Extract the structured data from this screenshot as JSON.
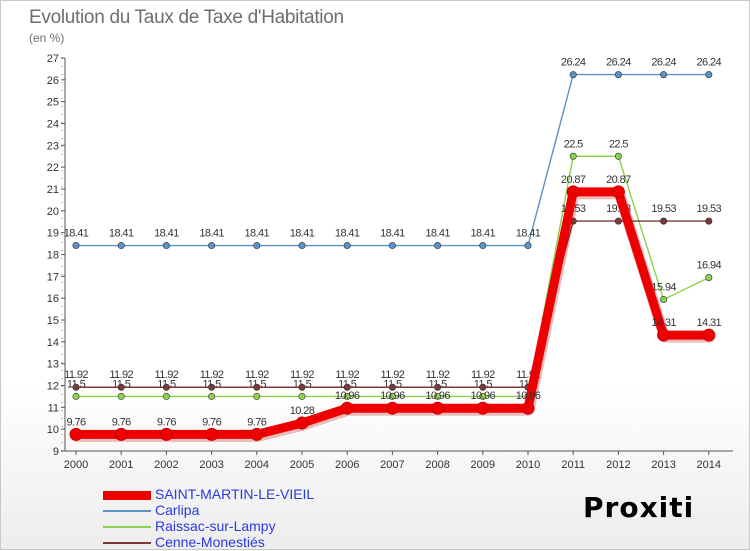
{
  "header": {
    "title": "Evolution du Taux de Taxe d'Habitation",
    "unit_label": "(en %)"
  },
  "branding": {
    "logo_text": "Proxiti"
  },
  "chart_data": {
    "type": "line",
    "title": "Evolution du Taux de Taxe d'Habitation",
    "ylabel": "(en %)",
    "xlabel": "",
    "ylim": [
      9,
      27
    ],
    "yticks": [
      9,
      10,
      11,
      12,
      13,
      14,
      15,
      16,
      17,
      18,
      19,
      20,
      21,
      22,
      23,
      24,
      25,
      26,
      27
    ],
    "grid": false,
    "legend_position": "bottom-left",
    "x": [
      "2000",
      "2001",
      "2002",
      "2003",
      "2004",
      "2005",
      "2006",
      "2007",
      "2008",
      "2009",
      "2010",
      "2011",
      "2012",
      "2013",
      "2014"
    ],
    "series": [
      {
        "name": "Carlipa",
        "color": "#5b93c7",
        "values": [
          18.41,
          18.41,
          18.41,
          18.41,
          18.41,
          18.41,
          18.41,
          18.41,
          18.41,
          18.41,
          18.41,
          26.24,
          26.24,
          26.24,
          26.24
        ],
        "labels": [
          "18.41",
          "18.41",
          "18.41",
          "18.41",
          "18.41",
          "18.41",
          "18.41",
          "18.41",
          "18.41",
          "18.41",
          "18.41",
          "26.24",
          "26.24",
          "26.24",
          "26.24"
        ]
      },
      {
        "name": "Raissac-sur-Lampy",
        "color": "#8ed14c",
        "values": [
          11.5,
          11.5,
          11.5,
          11.5,
          11.5,
          11.5,
          11.5,
          11.5,
          11.5,
          11.5,
          11.5,
          22.5,
          22.5,
          15.94,
          16.94
        ],
        "labels": [
          "11.5",
          "11.5",
          "11.5",
          "11.5",
          "11.5",
          "11.5",
          "11.5",
          "11.5",
          "11.5",
          "11.5",
          "11.5",
          "22.5",
          "22.5",
          "15.94",
          "16.94"
        ]
      },
      {
        "name": "Cenne-Monestiés",
        "color": "#7a3a3a",
        "values": [
          11.92,
          11.92,
          11.92,
          11.92,
          11.92,
          11.92,
          11.92,
          11.92,
          11.92,
          11.92,
          11.92,
          19.53,
          19.53,
          19.53,
          19.53
        ],
        "labels": [
          "11.92",
          "11.92",
          "11.92",
          "11.92",
          "11.92",
          "11.92",
          "11.92",
          "11.92",
          "11.92",
          "11.92",
          "11.92",
          "19.53",
          "19.53",
          "19.53",
          "19.53"
        ]
      },
      {
        "name": "SAINT-MARTIN-LE-VIEIL",
        "color": "#ee0000",
        "values": [
          9.76,
          9.76,
          9.76,
          9.76,
          9.76,
          10.28,
          10.96,
          10.96,
          10.96,
          10.96,
          10.96,
          20.87,
          20.87,
          14.31,
          14.31
        ],
        "labels": [
          "9.76",
          "9.76",
          "9.76",
          "9.76",
          "9.76",
          "10.28",
          "10.96",
          "10.96",
          "10.96",
          "10.96",
          "10.96",
          "20.87",
          "20.87",
          "14.31",
          "14.31"
        ]
      }
    ],
    "legend": [
      {
        "name": "SAINT-MARTIN-LE-VIEIL",
        "color": "#ee0000",
        "swatch": "thick"
      },
      {
        "name": "Carlipa",
        "color": "#5b93c7",
        "swatch": "thin"
      },
      {
        "name": "Raissac-sur-Lampy",
        "color": "#8ed14c",
        "swatch": "thin"
      },
      {
        "name": "Cenne-Monestiés",
        "color": "#7a3a3a",
        "swatch": "thin"
      }
    ]
  }
}
